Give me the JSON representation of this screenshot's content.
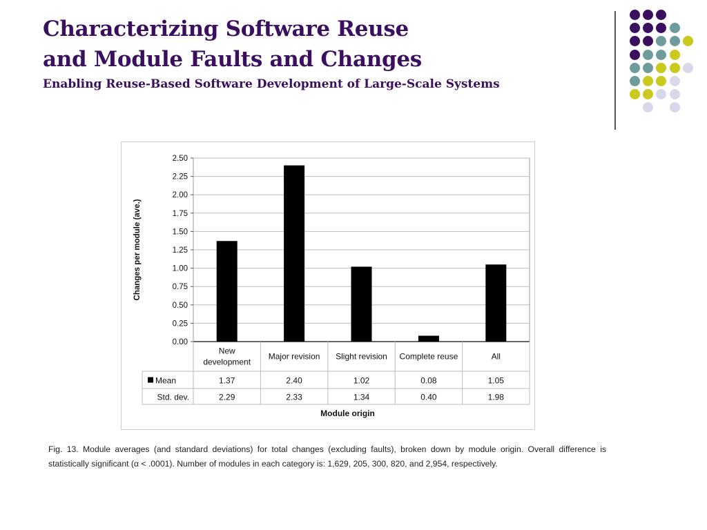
{
  "slide": {
    "title_line1": "Characterizing Software Reuse",
    "title_line2": "and Module Faults and Changes",
    "subtitle": "Enabling Reuse-Based Software Development of Large-Scale Systems",
    "caption": "Fig. 13. Module averages (and standard deviations) for total changes (excluding faults), broken down by module origin. Overall difference is statistically significant (α < .0001). Number of modules in each category is: 1,629, 205, 300, 820, and 2,954, respectively."
  },
  "colors": {
    "purple": "#3b0f5f",
    "teal": "#6e9c9c",
    "yellow": "#c9c91e",
    "lavender": "#d8d8ea",
    "bar": "#000000"
  },
  "chart_data": {
    "type": "bar",
    "title": "",
    "xlabel": "Module origin",
    "ylabel": "Changes per module (ave.)",
    "ylim": [
      0,
      2.5
    ],
    "yticks": [
      "0.00",
      "0.25",
      "0.50",
      "0.75",
      "1.00",
      "1.25",
      "1.50",
      "1.75",
      "2.00",
      "2.25",
      "2.50"
    ],
    "categories": [
      [
        "New",
        "development"
      ],
      [
        "Major revision"
      ],
      [
        "Slight revision"
      ],
      [
        "Complete reuse"
      ],
      [
        "All"
      ]
    ],
    "series": [
      {
        "name": "Mean",
        "values": [
          1.37,
          2.4,
          1.02,
          0.08,
          1.05
        ],
        "labels": [
          "1.37",
          "2.40",
          "1.02",
          "0.08",
          "1.05"
        ]
      },
      {
        "name": "Std. dev.",
        "values": [
          2.29,
          2.33,
          1.34,
          0.4,
          1.98
        ],
        "labels": [
          "2.29",
          "2.33",
          "1.34",
          "0.40",
          "1.98"
        ]
      }
    ],
    "grid": true
  }
}
